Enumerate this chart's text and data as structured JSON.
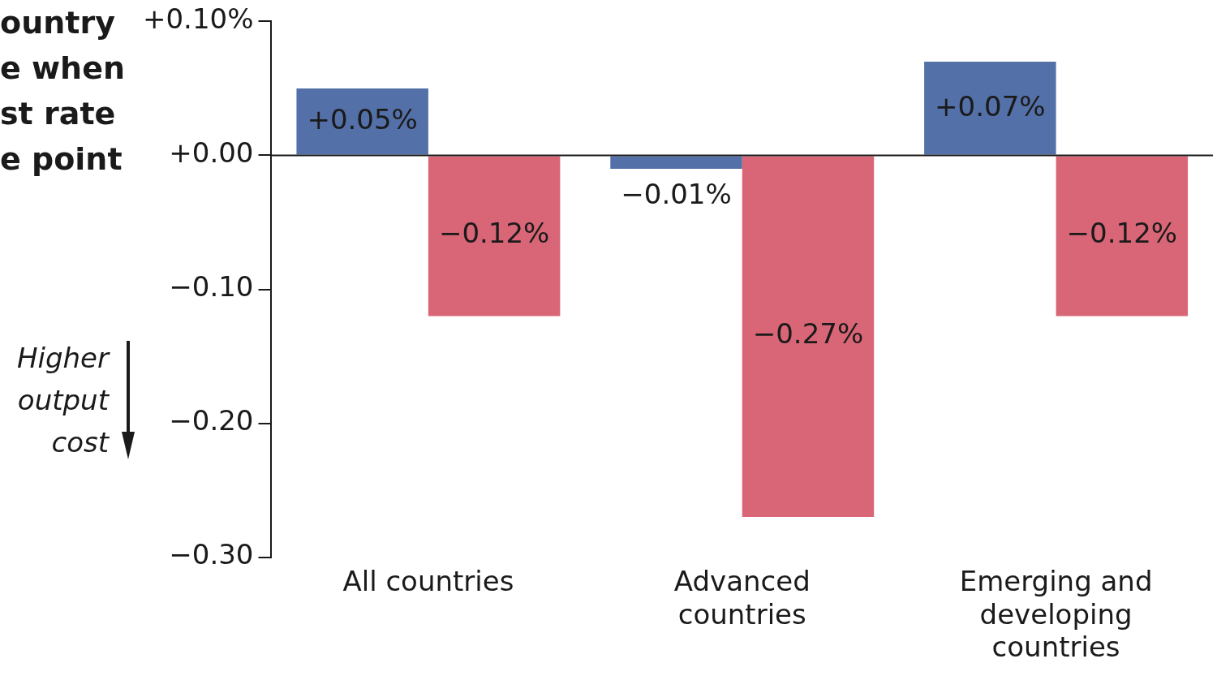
{
  "chart_data": {
    "type": "bar",
    "ylabel": "ountry\ne when\nst rate\ne point",
    "annotations": [
      "Higher output cost"
    ],
    "categories": [
      "All countries",
      "Advanced countries",
      "Emerging and developing countries"
    ],
    "series": [
      {
        "color": "#5470a8",
        "values": [
          0.05,
          -0.01,
          0.07
        ],
        "value_labels": [
          "+0.05%",
          "−0.01%",
          "+0.07%"
        ]
      },
      {
        "color": "#d96677",
        "values": [
          -0.12,
          -0.27,
          -0.12
        ],
        "value_labels": [
          "−0.12%",
          "−0.27%",
          "−0.12%"
        ]
      }
    ],
    "ylim": [
      -0.3,
      0.1
    ],
    "yticks": [
      {
        "value": 0.1,
        "label": "+0.10%"
      },
      {
        "value": 0,
        "label": "+0.00"
      },
      {
        "value": -0.1,
        "label": "−0.10"
      },
      {
        "value": -0.2,
        "label": "−0.20"
      },
      {
        "value": -0.3,
        "label": "−0.30"
      }
    ],
    "ref_lines": [
      {
        "axis": "y",
        "value": 0,
        "color": "#1a1a1a"
      }
    ],
    "grid": false,
    "legend": false
  }
}
